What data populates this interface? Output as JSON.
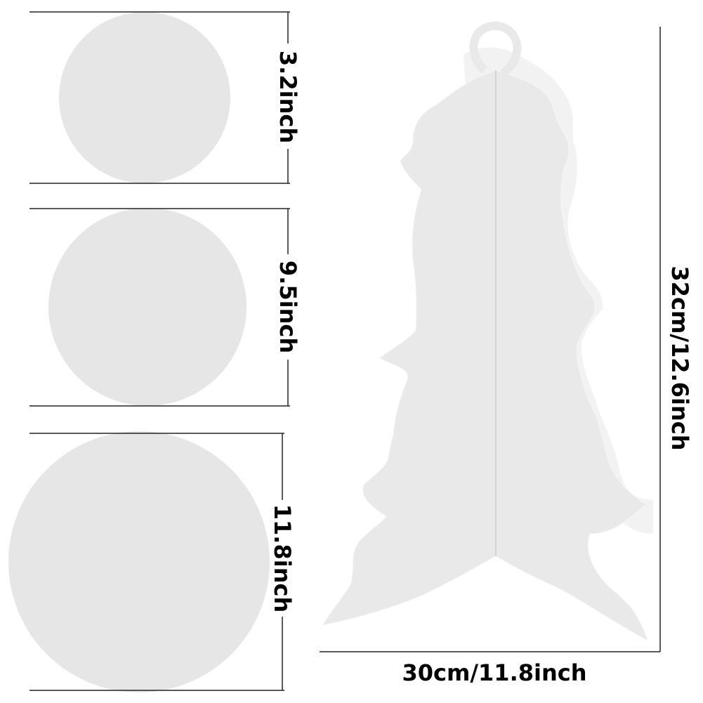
{
  "colors": {
    "disc": "#e6e6e6",
    "stand": "#e9e9e9",
    "stand_shadow": "#f2f2f2",
    "stand_seam": "#d4d4d4",
    "line": "#222222",
    "text": "#000000"
  },
  "discs": [
    {
      "name": "small-disc",
      "dimension": "3.2inch"
    },
    {
      "name": "medium-disc",
      "dimension": "9.5inch"
    },
    {
      "name": "large-disc",
      "dimension": "11.8inch"
    }
  ],
  "stand": {
    "height_label": "32cm/12.6inch",
    "width_label": "30cm/11.8inch"
  }
}
